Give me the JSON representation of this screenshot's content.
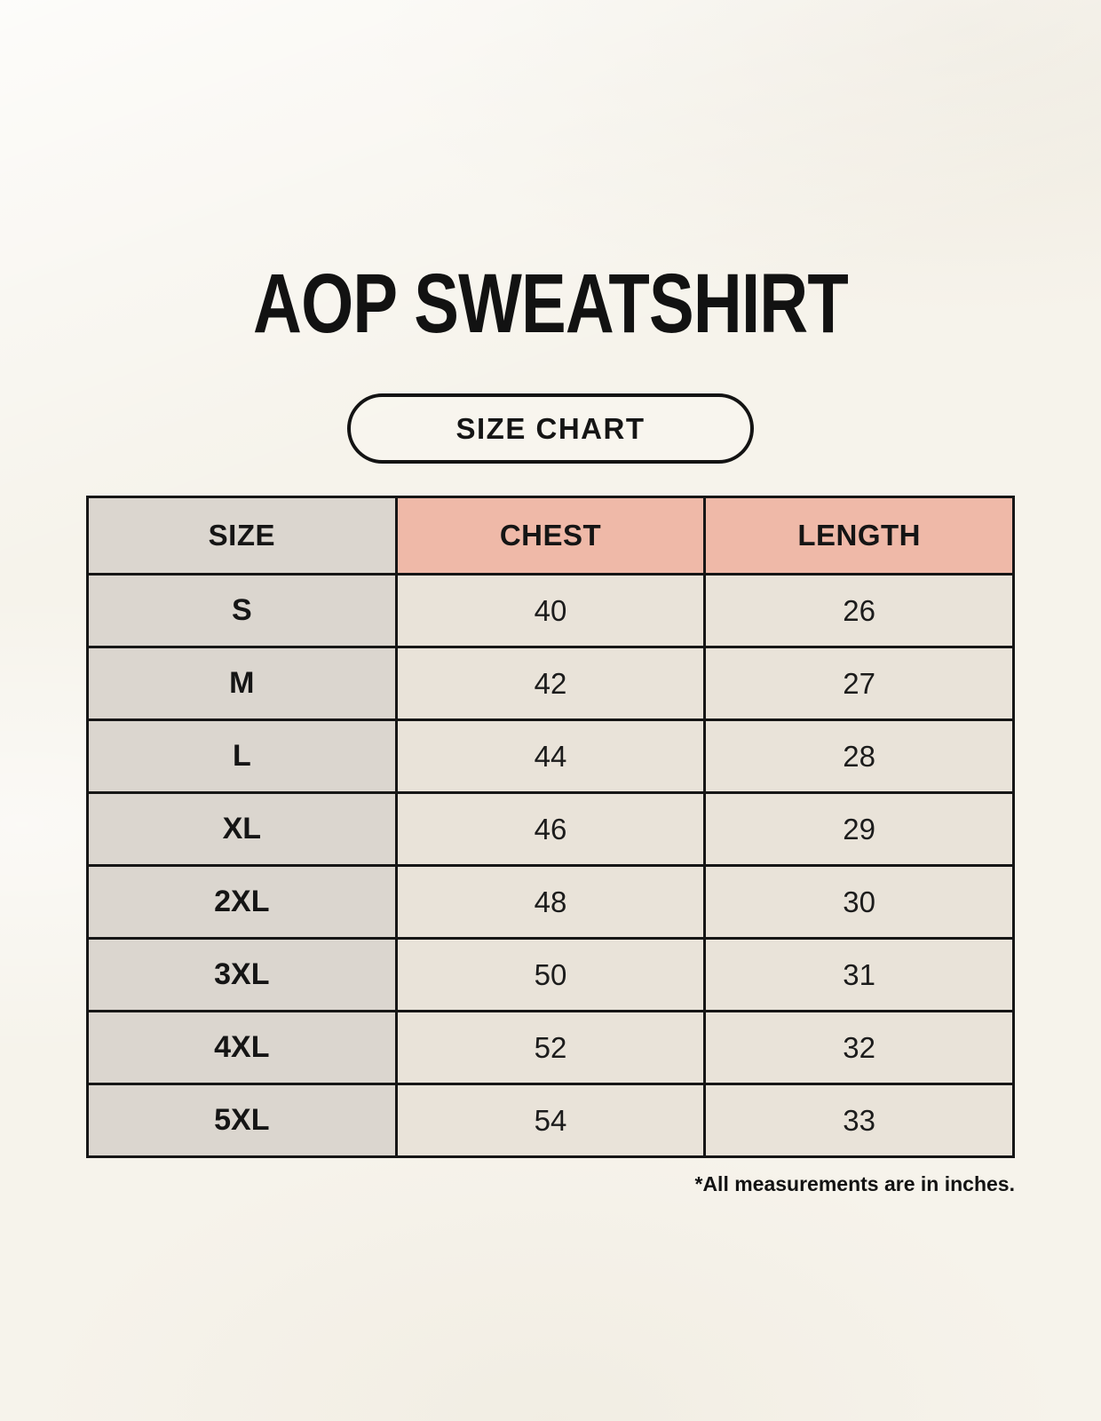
{
  "page": {
    "title": "AOP SWEATSHIRT",
    "badge_label": "SIZE CHART",
    "footnote": "*All measurements are in inches."
  },
  "colors": {
    "background": "#F6F3EB",
    "size_column_bg": "#DBD6CF",
    "header_accent_bg": "#EFB9A8",
    "data_cell_bg": "#E9E3D9",
    "border": "#161616",
    "text": "#151515"
  },
  "table": {
    "columns": [
      "SIZE",
      "CHEST",
      "LENGTH"
    ],
    "rows": [
      {
        "size": "S",
        "chest": "40",
        "length": "26"
      },
      {
        "size": "M",
        "chest": "42",
        "length": "27"
      },
      {
        "size": "L",
        "chest": "44",
        "length": "28"
      },
      {
        "size": "XL",
        "chest": "46",
        "length": "29"
      },
      {
        "size": "2XL",
        "chest": "48",
        "length": "30"
      },
      {
        "size": "3XL",
        "chest": "50",
        "length": "31"
      },
      {
        "size": "4XL",
        "chest": "52",
        "length": "32"
      },
      {
        "size": "5XL",
        "chest": "54",
        "length": "33"
      }
    ]
  },
  "chart_data": {
    "type": "table",
    "title": "AOP SWEATSHIRT",
    "subtitle": "SIZE CHART",
    "columns": [
      "SIZE",
      "CHEST",
      "LENGTH"
    ],
    "rows": [
      [
        "S",
        40,
        26
      ],
      [
        "M",
        42,
        27
      ],
      [
        "L",
        44,
        28
      ],
      [
        "XL",
        46,
        29
      ],
      [
        "2XL",
        48,
        30
      ],
      [
        "3XL",
        50,
        31
      ],
      [
        "4XL",
        52,
        32
      ],
      [
        "5XL",
        54,
        33
      ]
    ],
    "annotations": [
      "*All measurements are in inches."
    ],
    "units": "inches"
  }
}
